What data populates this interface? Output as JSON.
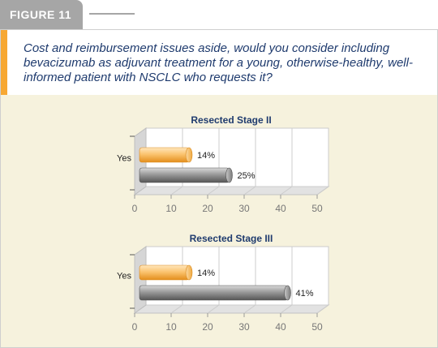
{
  "figure": {
    "label": "FIGURE 11"
  },
  "question": "Cost and reimbursement issues aside, would you consider including bevacizumab as adjuvant treatment for a young, otherwise-healthy, well-informed patient with NSCLC who requests it?",
  "colors": {
    "orange_bar": "#f7a833",
    "gray_bar": "#8a8a8a",
    "accent": "#f7a833",
    "title": "#1f3b6e"
  },
  "chart_data": [
    {
      "type": "bar",
      "orientation": "horizontal",
      "title": "Resected Stage II",
      "categories": [
        "Yes"
      ],
      "series": [
        {
          "values": [
            14
          ],
          "color": "#f7a833"
        },
        {
          "values": [
            25
          ],
          "color": "#8a8a8a"
        }
      ],
      "value_labels": [
        "14%",
        "25%"
      ],
      "xlim": [
        0,
        50
      ],
      "ticks": [
        "0",
        "10",
        "20",
        "30",
        "40",
        "50"
      ],
      "grid": true
    },
    {
      "type": "bar",
      "orientation": "horizontal",
      "title": "Resected Stage III",
      "categories": [
        "Yes"
      ],
      "series": [
        {
          "values": [
            14
          ],
          "color": "#f7a833"
        },
        {
          "values": [
            41
          ],
          "color": "#8a8a8a"
        }
      ],
      "value_labels": [
        "14%",
        "41%"
      ],
      "xlim": [
        0,
        50
      ],
      "ticks": [
        "0",
        "10",
        "20",
        "30",
        "40",
        "50"
      ],
      "grid": true
    }
  ]
}
